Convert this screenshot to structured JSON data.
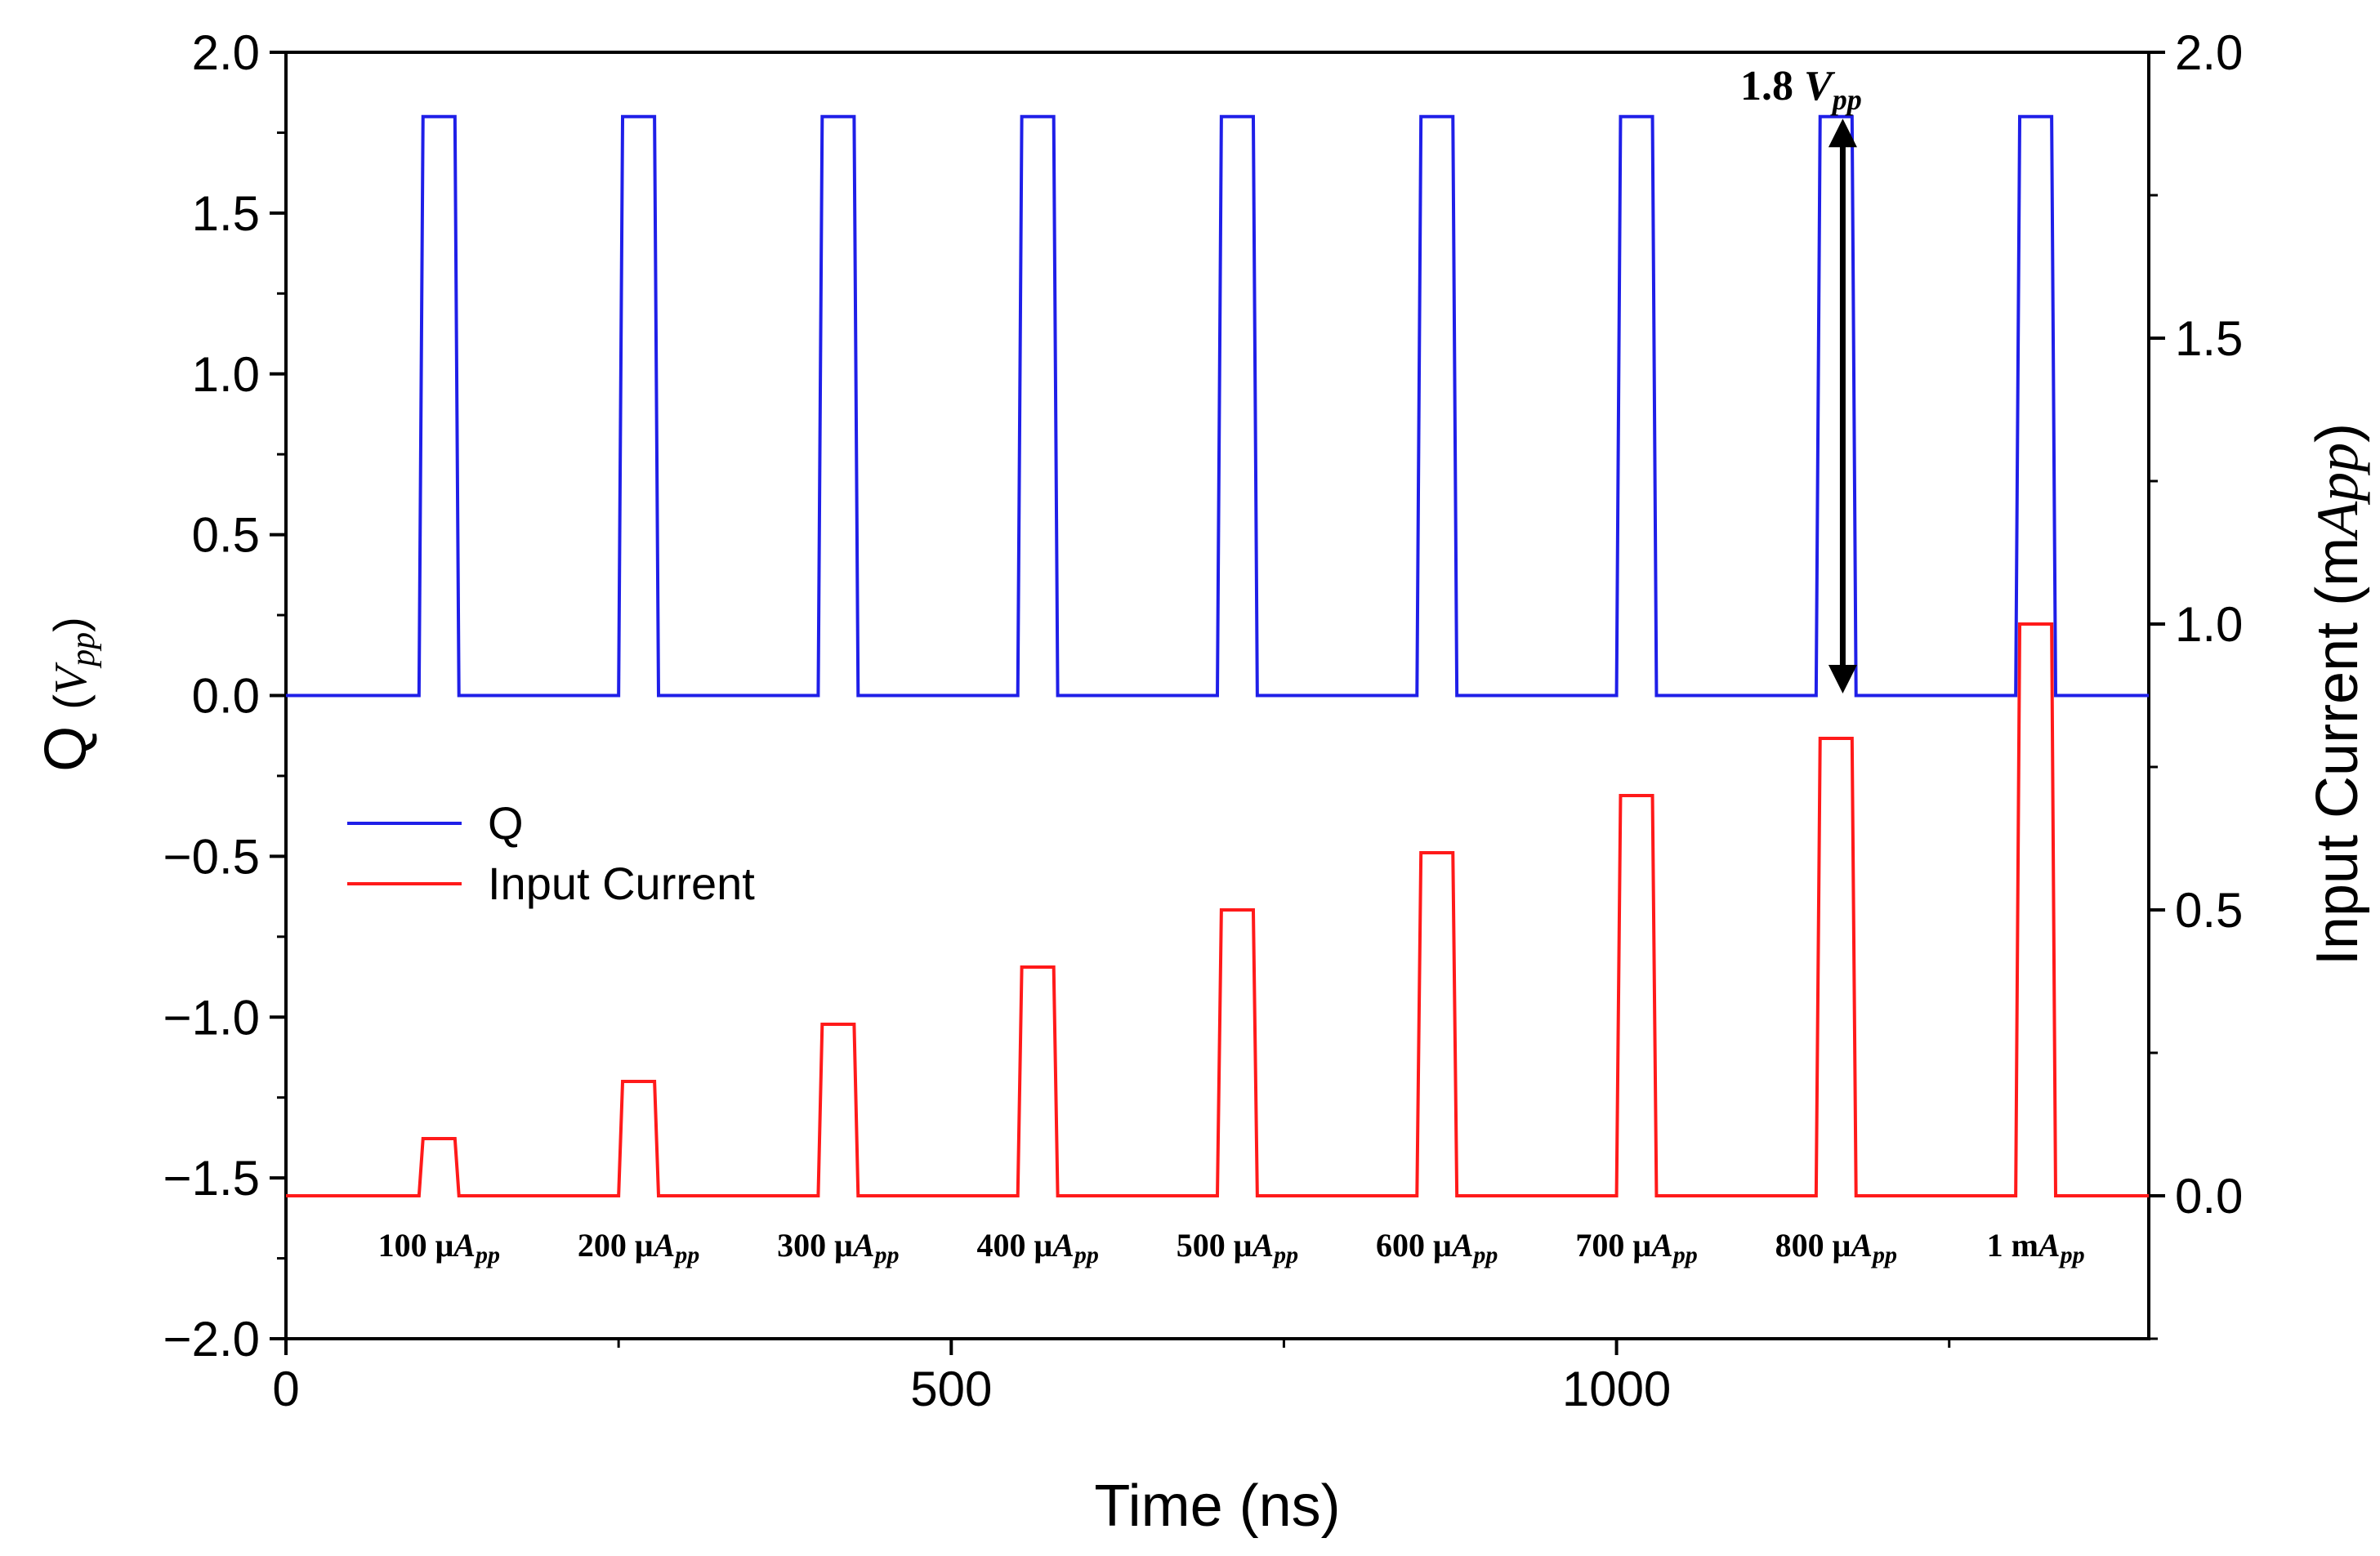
{
  "chart_data": {
    "type": "line",
    "title": "",
    "xlabel": "Time (ns)",
    "ylabel": {
      "prefix": "Q ",
      "unit_open": "(",
      "unit_symbol": "V",
      "unit_sub": "pp",
      "unit_close": ")"
    },
    "y2label": {
      "prefix": "Input Current (m",
      "unit_symbol": "A",
      "unit_sub": "pp",
      "unit_close": ")"
    },
    "xlim": [
      0,
      1400
    ],
    "ylim": [
      -2.0,
      2.0
    ],
    "y2lim": [
      -0.25,
      2.0
    ],
    "xticks": [
      "0",
      "500",
      "1000"
    ],
    "xtick_values": [
      0,
      500,
      1000
    ],
    "yticks": [
      "2.0",
      "1.5",
      "1.0",
      "0.5",
      "0.0",
      "−0.5",
      "−1.0",
      "−1.5",
      "−2.0"
    ],
    "ytick_values": [
      2.0,
      1.5,
      1.0,
      0.5,
      0.0,
      -0.5,
      -1.0,
      -1.5,
      -2.0
    ],
    "y2ticks": [
      "2.0",
      "1.5",
      "1.0",
      "0.5",
      "0.0"
    ],
    "y2tick_values": [
      2.0,
      1.5,
      1.0,
      0.5,
      0.0
    ],
    "grid": false,
    "legend_position": "center-left",
    "pulse_width_ns": 30,
    "pulse_starts_ns": [
      100,
      250,
      400,
      550,
      700,
      850,
      1000,
      1150,
      1300
    ],
    "series": [
      {
        "name": "Q",
        "color": "#1f1fe8",
        "axis": "left",
        "baseline": 0.0,
        "pulse_high": [
          1.8,
          1.8,
          1.8,
          1.8,
          1.8,
          1.8,
          1.8,
          1.8,
          1.8
        ]
      },
      {
        "name": "Input Current",
        "color": "#ff1a1a",
        "axis": "right",
        "baseline": 0.0,
        "pulse_high": [
          0.1,
          0.2,
          0.3,
          0.4,
          0.5,
          0.6,
          0.7,
          0.8,
          1.0
        ]
      }
    ],
    "annotations": {
      "arrow": {
        "x": 1170,
        "y_from": 0.0,
        "y_to": 1.8
      },
      "vpp_label": {
        "value": "1.8 ",
        "symbol": "V",
        "sub": "pp"
      },
      "pulse_labels": [
        {
          "value": "100 μ",
          "unit": "A",
          "sub": "pp"
        },
        {
          "value": "200 μ",
          "unit": "A",
          "sub": "pp"
        },
        {
          "value": "300 μ",
          "unit": "A",
          "sub": "pp"
        },
        {
          "value": "400 μ",
          "unit": "A",
          "sub": "pp"
        },
        {
          "value": "500 μ",
          "unit": "A",
          "sub": "pp"
        },
        {
          "value": "600 μ",
          "unit": "A",
          "sub": "pp"
        },
        {
          "value": "700 μ",
          "unit": "A",
          "sub": "pp"
        },
        {
          "value": "800 μ",
          "unit": "A",
          "sub": "pp"
        },
        {
          "value": "1 m",
          "unit": "A",
          "sub": "pp"
        }
      ]
    }
  }
}
